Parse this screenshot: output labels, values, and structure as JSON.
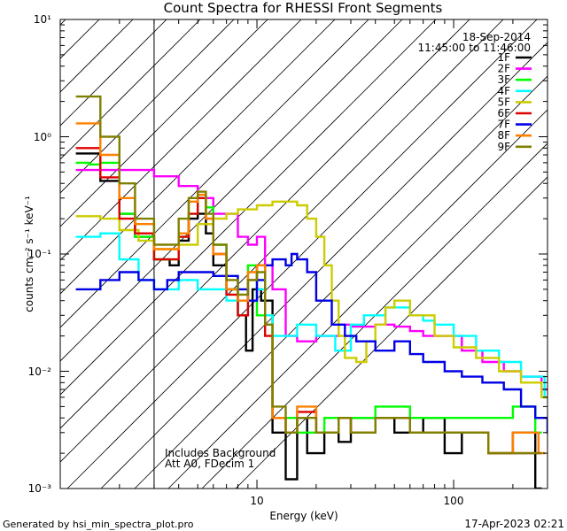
{
  "chart_data": {
    "type": "line",
    "title": "Count Spectra for RHESSI Front Segments",
    "xlabel": "Energy (keV)",
    "ylabel": "counts cm⁻² s⁻¹ keV⁻¹",
    "xscale": "log",
    "yscale": "log",
    "xlim": [
      1.0,
      300
    ],
    "ylim": [
      0.001,
      10
    ],
    "x_tick_labels": [
      "10",
      "100"
    ],
    "y_tick_labels": [
      "10⁻³",
      "10⁻²",
      "10⁻¹",
      "10⁰",
      "10¹"
    ],
    "date": "18-Sep-2014",
    "time_range": "11:45:00 to 11:46:00",
    "notes": [
      "Includes Background",
      "Att A0, FDecim 1"
    ],
    "footer_left": "Generated by hsi_min_spectra_plot.pro",
    "footer_right": "17-Apr-2023 02:21",
    "hatched_below_keV": 3,
    "series": [
      {
        "name": "1F",
        "color": "#000000",
        "points": [
          [
            1.2,
            0.72
          ],
          [
            1.4,
            0.72
          ],
          [
            1.6,
            0.42
          ],
          [
            2.0,
            0.22
          ],
          [
            2.4,
            0.14
          ],
          [
            3.0,
            0.09
          ],
          [
            3.6,
            0.08
          ],
          [
            4.0,
            0.13
          ],
          [
            4.5,
            0.2
          ],
          [
            5.0,
            0.22
          ],
          [
            5.5,
            0.15
          ],
          [
            6,
            0.08
          ],
          [
            7,
            0.05
          ],
          [
            8,
            0.03
          ],
          [
            8.8,
            0.015
          ],
          [
            9.5,
            0.05
          ],
          [
            10.5,
            0.04
          ],
          [
            12,
            0.003
          ],
          [
            14,
            0.0012
          ],
          [
            16,
            0.004
          ],
          [
            18,
            0.002
          ],
          [
            22,
            0.003
          ],
          [
            26,
            0.0025
          ],
          [
            30,
            0.004
          ],
          [
            40,
            0.004
          ],
          [
            50,
            0.003
          ],
          [
            60,
            0.003
          ],
          [
            70,
            0.004
          ],
          [
            90,
            0.002
          ],
          [
            110,
            0.003
          ],
          [
            150,
            0.002
          ],
          [
            200,
            0.003
          ],
          [
            260,
            0.001
          ]
        ]
      },
      {
        "name": "2F",
        "color": "#ff00ff",
        "points": [
          [
            1.2,
            0.52
          ],
          [
            2.0,
            0.52
          ],
          [
            3.0,
            0.46
          ],
          [
            4.0,
            0.38
          ],
          [
            5.0,
            0.3
          ],
          [
            6.0,
            0.22
          ],
          [
            8.0,
            0.14
          ],
          [
            9.0,
            0.12
          ],
          [
            10,
            0.14
          ],
          [
            11,
            0.08
          ],
          [
            12,
            0.05
          ],
          [
            14,
            0.02
          ],
          [
            16,
            0.018
          ],
          [
            20,
            0.02
          ],
          [
            26,
            0.025
          ],
          [
            30,
            0.024
          ],
          [
            40,
            0.025
          ],
          [
            50,
            0.024
          ],
          [
            60,
            0.022
          ],
          [
            70,
            0.02
          ],
          [
            90,
            0.02
          ],
          [
            110,
            0.015
          ],
          [
            140,
            0.012
          ],
          [
            180,
            0.01
          ],
          [
            220,
            0.009
          ],
          [
            280,
            0.007
          ]
        ]
      },
      {
        "name": "3F",
        "color": "#00ff00",
        "points": [
          [
            1.2,
            0.6
          ],
          [
            1.4,
            0.58
          ],
          [
            1.6,
            0.6
          ],
          [
            2.0,
            0.22
          ],
          [
            2.4,
            0.14
          ],
          [
            3.0,
            0.09
          ],
          [
            4.0,
            0.14
          ],
          [
            4.5,
            0.22
          ],
          [
            5.0,
            0.3
          ],
          [
            5.5,
            0.25
          ],
          [
            6,
            0.12
          ],
          [
            7,
            0.05
          ],
          [
            8,
            0.04
          ],
          [
            9,
            0.08
          ],
          [
            10,
            0.03
          ],
          [
            12,
            0.004
          ],
          [
            16,
            0.003
          ],
          [
            22,
            0.004
          ],
          [
            30,
            0.004
          ],
          [
            40,
            0.005
          ],
          [
            60,
            0.004
          ],
          [
            80,
            0.004
          ],
          [
            110,
            0.004
          ],
          [
            150,
            0.004
          ],
          [
            200,
            0.005
          ],
          [
            260,
            0.003
          ]
        ]
      },
      {
        "name": "4F",
        "color": "#00ffff",
        "points": [
          [
            1.2,
            0.14
          ],
          [
            1.6,
            0.15
          ],
          [
            2.0,
            0.09
          ],
          [
            2.5,
            0.06
          ],
          [
            3.0,
            0.05
          ],
          [
            4.0,
            0.06
          ],
          [
            5.0,
            0.05
          ],
          [
            6,
            0.05
          ],
          [
            7,
            0.04
          ],
          [
            8,
            0.03
          ],
          [
            9,
            0.04
          ],
          [
            10,
            0.05
          ],
          [
            11,
            0.03
          ],
          [
            12,
            0.02
          ],
          [
            14,
            0.02
          ],
          [
            16,
            0.025
          ],
          [
            20,
            0.02
          ],
          [
            25,
            0.015
          ],
          [
            30,
            0.025
          ],
          [
            35,
            0.03
          ],
          [
            40,
            0.03
          ],
          [
            45,
            0.035
          ],
          [
            50,
            0.035
          ],
          [
            60,
            0.03
          ],
          [
            70,
            0.027
          ],
          [
            80,
            0.025
          ],
          [
            100,
            0.02
          ],
          [
            130,
            0.015
          ],
          [
            170,
            0.012
          ],
          [
            220,
            0.009
          ],
          [
            290,
            0.006
          ]
        ]
      },
      {
        "name": "5F",
        "color": "#cccc00",
        "points": [
          [
            1.2,
            0.21
          ],
          [
            1.6,
            0.2
          ],
          [
            2.0,
            0.16
          ],
          [
            2.5,
            0.13
          ],
          [
            3.0,
            0.11
          ],
          [
            3.6,
            0.11
          ],
          [
            4.0,
            0.12
          ],
          [
            5.0,
            0.18
          ],
          [
            6,
            0.2
          ],
          [
            7,
            0.22
          ],
          [
            8,
            0.24
          ],
          [
            10,
            0.26
          ],
          [
            12,
            0.28
          ],
          [
            14,
            0.28
          ],
          [
            16,
            0.26
          ],
          [
            18,
            0.2
          ],
          [
            20,
            0.14
          ],
          [
            22,
            0.08
          ],
          [
            24,
            0.04
          ],
          [
            26,
            0.02
          ],
          [
            28,
            0.013
          ],
          [
            32,
            0.012
          ],
          [
            36,
            0.018
          ],
          [
            40,
            0.025
          ],
          [
            45,
            0.035
          ],
          [
            50,
            0.04
          ],
          [
            60,
            0.03
          ],
          [
            80,
            0.02
          ],
          [
            100,
            0.016
          ],
          [
            130,
            0.013
          ],
          [
            170,
            0.01
          ],
          [
            220,
            0.008
          ],
          [
            280,
            0.006
          ]
        ]
      },
      {
        "name": "6F",
        "color": "#e00000",
        "points": [
          [
            1.2,
            0.8
          ],
          [
            1.4,
            0.8
          ],
          [
            1.6,
            0.45
          ],
          [
            2.0,
            0.2
          ],
          [
            2.4,
            0.15
          ],
          [
            3.0,
            0.09
          ],
          [
            4.0,
            0.14
          ],
          [
            4.5,
            0.22
          ],
          [
            5.0,
            0.3
          ],
          [
            5.5,
            0.2
          ],
          [
            6,
            0.1
          ],
          [
            7,
            0.045
          ],
          [
            8,
            0.03
          ],
          [
            9,
            0.06
          ],
          [
            10,
            0.08
          ],
          [
            11,
            0.02
          ],
          [
            12,
            0.004
          ],
          [
            14,
            0.003
          ],
          [
            16,
            0.0045
          ],
          [
            20,
            0.003
          ],
          [
            26,
            0.004
          ],
          [
            30,
            0.003
          ],
          [
            40,
            0.004
          ],
          [
            60,
            0.003
          ],
          [
            80,
            0.003
          ],
          [
            110,
            0.003
          ],
          [
            150,
            0.002
          ],
          [
            200,
            0.002
          ],
          [
            260,
            0.002
          ]
        ]
      },
      {
        "name": "7F",
        "color": "#0000e6",
        "points": [
          [
            1.2,
            0.05
          ],
          [
            1.6,
            0.06
          ],
          [
            2.0,
            0.07
          ],
          [
            2.5,
            0.06
          ],
          [
            3.0,
            0.05
          ],
          [
            3.5,
            0.06
          ],
          [
            4.0,
            0.07
          ],
          [
            5.0,
            0.07
          ],
          [
            6,
            0.065
          ],
          [
            7,
            0.065
          ],
          [
            8,
            0.05
          ],
          [
            9,
            0.04
          ],
          [
            10,
            0.06
          ],
          [
            11,
            0.08
          ],
          [
            12,
            0.09
          ],
          [
            13,
            0.09
          ],
          [
            14,
            0.08
          ],
          [
            15,
            0.1
          ],
          [
            16,
            0.09
          ],
          [
            18,
            0.07
          ],
          [
            20,
            0.04
          ],
          [
            24,
            0.025
          ],
          [
            28,
            0.02
          ],
          [
            32,
            0.018
          ],
          [
            40,
            0.015
          ],
          [
            50,
            0.018
          ],
          [
            60,
            0.014
          ],
          [
            70,
            0.012
          ],
          [
            90,
            0.01
          ],
          [
            110,
            0.009
          ],
          [
            140,
            0.008
          ],
          [
            180,
            0.007
          ],
          [
            220,
            0.005
          ],
          [
            260,
            0.004
          ],
          [
            300,
            0.003
          ]
        ]
      },
      {
        "name": "8F",
        "color": "#ff8000",
        "points": [
          [
            1.2,
            1.3
          ],
          [
            1.4,
            1.3
          ],
          [
            1.6,
            0.7
          ],
          [
            2.0,
            0.3
          ],
          [
            2.4,
            0.18
          ],
          [
            3.0,
            0.11
          ],
          [
            4.0,
            0.15
          ],
          [
            4.5,
            0.28
          ],
          [
            5.0,
            0.32
          ],
          [
            5.5,
            0.2
          ],
          [
            6,
            0.1
          ],
          [
            7,
            0.05
          ],
          [
            8,
            0.04
          ],
          [
            9,
            0.07
          ],
          [
            10,
            0.08
          ],
          [
            11,
            0.025
          ],
          [
            12,
            0.004
          ],
          [
            14,
            0.003
          ],
          [
            16,
            0.005
          ],
          [
            20,
            0.003
          ],
          [
            26,
            0.004
          ],
          [
            30,
            0.003
          ],
          [
            40,
            0.004
          ],
          [
            60,
            0.003
          ],
          [
            80,
            0.003
          ],
          [
            110,
            0.003
          ],
          [
            150,
            0.002
          ],
          [
            200,
            0.003
          ],
          [
            270,
            0.002
          ]
        ]
      },
      {
        "name": "9F",
        "color": "#808000",
        "points": [
          [
            1.2,
            2.2
          ],
          [
            1.4,
            2.2
          ],
          [
            1.6,
            1.0
          ],
          [
            2.0,
            0.4
          ],
          [
            2.4,
            0.2
          ],
          [
            3.0,
            0.12
          ],
          [
            4.0,
            0.2
          ],
          [
            4.5,
            0.3
          ],
          [
            5.0,
            0.34
          ],
          [
            5.5,
            0.22
          ],
          [
            6,
            0.12
          ],
          [
            7,
            0.06
          ],
          [
            8,
            0.045
          ],
          [
            9,
            0.06
          ],
          [
            10,
            0.07
          ],
          [
            11,
            0.025
          ],
          [
            12,
            0.005
          ],
          [
            14,
            0.003
          ],
          [
            16,
            0.004
          ],
          [
            20,
            0.003
          ],
          [
            26,
            0.004
          ],
          [
            30,
            0.003
          ],
          [
            40,
            0.004
          ],
          [
            60,
            0.003
          ],
          [
            80,
            0.003
          ],
          [
            110,
            0.003
          ],
          [
            150,
            0.002
          ],
          [
            200,
            0.002
          ],
          [
            260,
            0.002
          ]
        ]
      }
    ]
  }
}
